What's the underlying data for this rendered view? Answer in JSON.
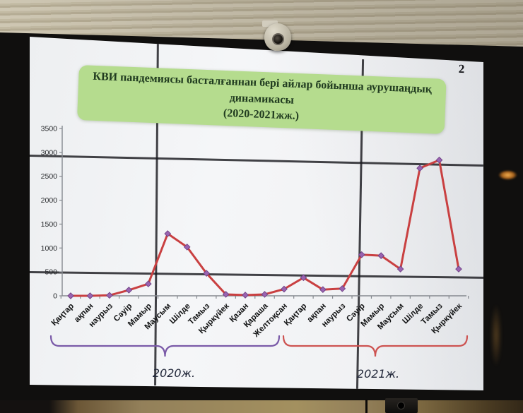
{
  "page": {
    "number": "2"
  },
  "title": {
    "line1": "КВИ пандемиясы басталғаннан бері айлар бойынша аурушаңдық",
    "line2": "динамикасы",
    "line3": "(2020-2021жж.)"
  },
  "chart_data": {
    "type": "line",
    "title": "КВИ пандемиясы басталғаннан бері айлар бойынша аурушаңдық динамикасы (2020-2021жж.)",
    "categories": [
      "Қаңтар",
      "ақпан",
      "наурыз",
      "Сәуір",
      "Мамыр",
      "Маусым",
      "Шілде",
      "Тамыз",
      "Қыркүйек",
      "Қазан",
      "Қараша",
      "Желтоқсан",
      "Қаңтар",
      "ақпан",
      "наурыз",
      "Сәуір",
      "Мамыр",
      "Маусым",
      "Шілде",
      "Тамыз",
      "Қыркүйек"
    ],
    "values": [
      0,
      0,
      10,
      120,
      250,
      1300,
      1020,
      470,
      30,
      15,
      30,
      140,
      380,
      130,
      150,
      860,
      840,
      560,
      2670,
      2840,
      560
    ],
    "ylim": [
      0,
      3500
    ],
    "yticks": [
      0,
      500,
      1000,
      1500,
      2000,
      2500,
      3000,
      3500
    ],
    "grid": "off",
    "legend_position": "none",
    "line_color": "#c94041",
    "marker_color": "#9a63b0",
    "marker_stroke": "#6e4185",
    "axis_color": "#85898f",
    "groups": [
      {
        "label": "2020ж.",
        "start_index": 0,
        "end_index": 11,
        "brace_color": "#7a5aa8"
      },
      {
        "label": "2021ж.",
        "start_index": 12,
        "end_index": 20,
        "brace_color": "#cd5351"
      }
    ]
  },
  "colors": {
    "title_box_bg": "#b5dc8e",
    "title_text": "#213c20",
    "screen_bg": "#f1f2f4"
  }
}
